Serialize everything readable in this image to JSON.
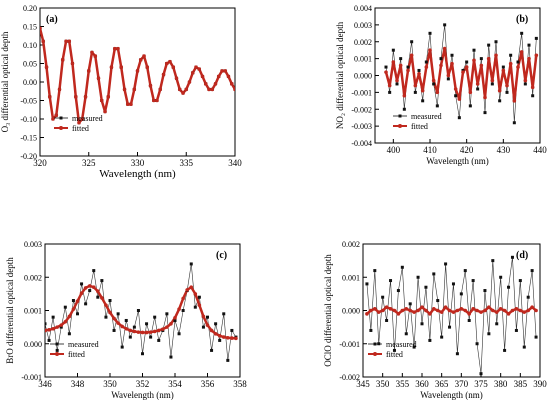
{
  "figure": {
    "background": "#ffffff"
  },
  "chart_data": [
    {
      "panel": "(a)",
      "type": "scatter",
      "ylabel": "O₃ differential optical depth",
      "xlabel": "Wavelength (nm)",
      "xlim": [
        320,
        340
      ],
      "ylim": [
        -0.2,
        0.2
      ],
      "xticks": [
        "320",
        "325",
        "330",
        "335",
        "340"
      ],
      "yticks": [
        "0.20",
        "0.15",
        "0.10",
        "0.05",
        "0.00",
        "-0.05",
        "-0.10",
        "-0.15",
        "-0.20"
      ],
      "legend": [
        {
          "label": "measured"
        },
        {
          "label": "fitted"
        }
      ],
      "legend_position": "bottom-left",
      "colors": {
        "measured": "#111111",
        "fitted": "#c0281e"
      },
      "series": [
        {
          "name": "measured",
          "x": [
            320.0,
            320.33,
            320.67,
            321.0,
            321.33,
            321.67,
            322.0,
            322.33,
            322.67,
            323.0,
            323.33,
            323.67,
            324.0,
            324.33,
            324.67,
            325.0,
            325.33,
            325.67,
            326.0,
            326.33,
            326.67,
            327.0,
            327.33,
            327.67,
            328.0,
            328.33,
            328.67,
            329.0,
            329.33,
            329.67,
            330.0,
            330.33,
            330.67,
            331.0,
            331.33,
            331.67,
            332.0,
            332.33,
            332.67,
            333.0,
            333.33,
            333.67,
            334.0,
            334.33,
            334.67,
            335.0,
            335.33,
            335.67,
            336.0,
            336.33,
            336.67,
            337.0,
            337.33,
            337.67,
            338.0,
            338.33,
            338.67,
            339.0,
            339.33,
            339.67,
            340.0
          ],
          "y": [
            0.145,
            0.11,
            0.04,
            -0.04,
            -0.1,
            -0.09,
            -0.02,
            0.06,
            0.11,
            0.11,
            0.05,
            -0.04,
            -0.11,
            -0.1,
            -0.04,
            0.03,
            0.08,
            0.07,
            0.01,
            -0.05,
            -0.08,
            -0.04,
            0.04,
            0.09,
            0.09,
            0.04,
            -0.02,
            -0.06,
            -0.06,
            -0.02,
            0.03,
            0.06,
            0.07,
            0.04,
            -0.01,
            -0.05,
            -0.05,
            -0.02,
            0.02,
            0.05,
            0.055,
            0.04,
            0.01,
            -0.02,
            -0.03,
            -0.02,
            0.0,
            0.025,
            0.04,
            0.035,
            0.015,
            -0.005,
            -0.02,
            -0.02,
            -0.005,
            0.015,
            0.03,
            0.03,
            0.015,
            -0.005,
            -0.02
          ]
        },
        {
          "name": "fitted",
          "x": [
            320.0,
            320.33,
            320.67,
            321.0,
            321.33,
            321.67,
            322.0,
            322.33,
            322.67,
            323.0,
            323.33,
            323.67,
            324.0,
            324.33,
            324.67,
            325.0,
            325.33,
            325.67,
            326.0,
            326.33,
            326.67,
            327.0,
            327.33,
            327.67,
            328.0,
            328.33,
            328.67,
            329.0,
            329.33,
            329.67,
            330.0,
            330.33,
            330.67,
            331.0,
            331.33,
            331.67,
            332.0,
            332.33,
            332.67,
            333.0,
            333.33,
            333.67,
            334.0,
            334.33,
            334.67,
            335.0,
            335.33,
            335.67,
            336.0,
            336.33,
            336.67,
            337.0,
            337.33,
            337.67,
            338.0,
            338.33,
            338.67,
            339.0,
            339.33,
            339.67,
            340.0
          ],
          "y": [
            0.145,
            0.11,
            0.04,
            -0.04,
            -0.1,
            -0.09,
            -0.02,
            0.06,
            0.11,
            0.11,
            0.05,
            -0.04,
            -0.11,
            -0.1,
            -0.04,
            0.03,
            0.08,
            0.07,
            0.01,
            -0.05,
            -0.08,
            -0.04,
            0.04,
            0.09,
            0.09,
            0.04,
            -0.02,
            -0.06,
            -0.06,
            -0.02,
            0.03,
            0.06,
            0.07,
            0.04,
            -0.01,
            -0.05,
            -0.05,
            -0.02,
            0.02,
            0.05,
            0.055,
            0.04,
            0.01,
            -0.02,
            -0.03,
            -0.02,
            0.0,
            0.025,
            0.04,
            0.035,
            0.015,
            -0.005,
            -0.02,
            -0.02,
            -0.005,
            0.015,
            0.03,
            0.03,
            0.015,
            -0.005,
            -0.02
          ]
        }
      ]
    },
    {
      "panel": "(b)",
      "type": "scatter",
      "ylabel": "NO₂ differential optical depth",
      "xlabel": "Wavelength (nm)",
      "xlim": [
        395,
        440
      ],
      "ylim": [
        -0.004,
        0.004
      ],
      "xticks": [
        "400",
        "410",
        "420",
        "430",
        "440"
      ],
      "yticks": [
        "0.004",
        "0.003",
        "0.002",
        "0.001",
        "0.000",
        "-0.001",
        "-0.002",
        "-0.003",
        "-0.004"
      ],
      "legend": [
        {
          "label": "measured"
        },
        {
          "label": "fitted"
        }
      ],
      "legend_position": "bottom-left",
      "colors": {
        "measured": "#111111",
        "fitted": "#c0281e"
      },
      "series": [
        {
          "name": "measured",
          "x": [
            398,
            399,
            400,
            401,
            402,
            403,
            404,
            405,
            406,
            407,
            408,
            409,
            410,
            411,
            412,
            413,
            414,
            415,
            416,
            417,
            418,
            419,
            420,
            421,
            422,
            423,
            424,
            425,
            426,
            427,
            428,
            429,
            430,
            431,
            432,
            433,
            434,
            435,
            436,
            437,
            438,
            439
          ],
          "y": [
            0.0005,
            -0.001,
            0.0015,
            -0.0005,
            0.001,
            -0.002,
            0.0005,
            0.002,
            -0.001,
            0.0003,
            -0.0015,
            0.0008,
            0.0025,
            -0.0005,
            -0.0018,
            0.001,
            0.003,
            -0.0002,
            0.0012,
            -0.0012,
            -0.0025,
            0.0003,
            0.0008,
            -0.0018,
            0.0015,
            -0.0008,
            0.001,
            -0.0022,
            0.0018,
            -0.0005,
            0.002,
            -0.0015,
            0.0005,
            -0.001,
            0.0012,
            -0.0028,
            0.0008,
            0.0025,
            -0.0005,
            0.0018,
            -0.0012,
            0.0022
          ]
        },
        {
          "name": "fitted",
          "x": [
            398,
            399,
            400,
            401,
            402,
            403,
            404,
            405,
            406,
            407,
            408,
            409,
            410,
            411,
            412,
            413,
            414,
            415,
            416,
            417,
            418,
            419,
            420,
            421,
            422,
            423,
            424,
            425,
            426,
            427,
            428,
            429,
            430,
            431,
            432,
            433,
            434,
            435,
            436,
            437,
            438,
            439
          ],
          "y": [
            0.0002,
            -0.0006,
            0.0008,
            -0.0003,
            0.0006,
            -0.0012,
            0.0003,
            0.0012,
            -0.0006,
            0.0001,
            -0.0009,
            0.0005,
            0.0015,
            -0.0003,
            -0.001,
            0.0006,
            0.0016,
            0.0,
            0.0007,
            -0.0008,
            -0.0014,
            0.0002,
            0.0005,
            -0.001,
            0.0009,
            -0.0005,
            0.0006,
            -0.0013,
            0.001,
            -0.0003,
            0.0012,
            -0.0009,
            0.0003,
            -0.0006,
            0.0007,
            -0.0015,
            0.0005,
            0.0014,
            -0.0003,
            0.001,
            -0.0007,
            0.0012
          ]
        }
      ]
    },
    {
      "panel": "(c)",
      "type": "scatter",
      "ylabel": "BrO differential optical depth",
      "xlabel": "Wavelength (nm)",
      "xlim": [
        346,
        358
      ],
      "ylim": [
        -0.001,
        0.003
      ],
      "xticks": [
        "346",
        "348",
        "350",
        "352",
        "354",
        "356",
        "358"
      ],
      "yticks": [
        "0.003",
        "0.002",
        "0.001",
        "0.000",
        "-0.001"
      ],
      "legend": [
        {
          "label": "measured"
        },
        {
          "label": "fitted"
        }
      ],
      "legend_position": "bottom-right",
      "colors": {
        "measured": "#111111",
        "fitted": "#c0281e"
      },
      "series": [
        {
          "name": "measured",
          "x": [
            346.0,
            346.25,
            346.5,
            346.75,
            347.0,
            347.25,
            347.5,
            347.75,
            348.0,
            348.25,
            348.5,
            348.75,
            349.0,
            349.25,
            349.5,
            349.75,
            350.0,
            350.25,
            350.5,
            350.75,
            351.0,
            351.25,
            351.5,
            351.75,
            352.0,
            352.25,
            352.5,
            352.75,
            353.0,
            353.25,
            353.5,
            353.75,
            354.0,
            354.25,
            354.5,
            354.75,
            355.0,
            355.25,
            355.5,
            355.75,
            356.0,
            356.25,
            356.5,
            356.75,
            357.0,
            357.25,
            357.5,
            357.75
          ],
          "y": [
            0.0006,
            0.0001,
            0.0008,
            -0.0002,
            0.0005,
            0.0011,
            0.0003,
            0.0013,
            0.0009,
            0.0018,
            0.0012,
            0.0016,
            0.0022,
            0.0014,
            0.0019,
            0.0008,
            0.0013,
            0.0004,
            0.0009,
            -0.0001,
            0.0007,
            0.0002,
            0.0005,
            0.001,
            -0.0003,
            0.0006,
            0.0002,
            0.0008,
            0.0001,
            0.0004,
            0.0009,
            -0.0004,
            0.0007,
            0.0003,
            0.001,
            0.0016,
            0.0024,
            0.0011,
            0.0014,
            0.0005,
            0.0008,
            -0.0002,
            0.0006,
            0.0001,
            0.0009,
            -0.0005,
            0.0004,
            0.0002
          ]
        },
        {
          "name": "fitted",
          "x": [
            346.0,
            346.25,
            346.5,
            346.75,
            347.0,
            347.25,
            347.5,
            347.75,
            348.0,
            348.25,
            348.5,
            348.75,
            349.0,
            349.25,
            349.5,
            349.75,
            350.0,
            350.25,
            350.5,
            350.75,
            351.0,
            351.25,
            351.5,
            351.75,
            352.0,
            352.25,
            352.5,
            352.75,
            353.0,
            353.25,
            353.5,
            353.75,
            354.0,
            354.25,
            354.5,
            354.75,
            355.0,
            355.25,
            355.5,
            355.75,
            356.0,
            356.25,
            356.5,
            356.75,
            357.0,
            357.25,
            357.5,
            357.75
          ],
          "y": [
            0.0004,
            0.00042,
            0.00045,
            0.0005,
            0.00056,
            0.00066,
            0.00082,
            0.00104,
            0.00128,
            0.00152,
            0.00168,
            0.00174,
            0.0017,
            0.00158,
            0.00138,
            0.00116,
            0.00094,
            0.00076,
            0.00062,
            0.00052,
            0.00045,
            0.0004,
            0.00037,
            0.00035,
            0.00034,
            0.00034,
            0.00035,
            0.00037,
            0.0004,
            0.00044,
            0.0005,
            0.0006,
            0.00078,
            0.00104,
            0.00136,
            0.00162,
            0.0017,
            0.0015,
            0.00116,
            0.00082,
            0.00056,
            0.0004,
            0.0003,
            0.00024,
            0.0002,
            0.00018,
            0.00017,
            0.00016
          ]
        }
      ]
    },
    {
      "panel": "(d)",
      "type": "scatter",
      "ylabel": "OClO differential optical depth",
      "xlabel": "Wavelength (nm)",
      "xlim": [
        345,
        390
      ],
      "ylim": [
        -0.002,
        0.002
      ],
      "xticks": [
        "345",
        "350",
        "355",
        "360",
        "365",
        "370",
        "375",
        "380",
        "385",
        "390"
      ],
      "yticks": [
        "0.002",
        "0.001",
        "0.000",
        "-0.001",
        "-0.002"
      ],
      "legend": [
        {
          "label": "measured"
        },
        {
          "label": "fitted"
        }
      ],
      "legend_position": "bottom-left",
      "colors": {
        "measured": "#111111",
        "fitted": "#c0281e"
      },
      "series": [
        {
          "name": "measured",
          "x": [
            346,
            347,
            348,
            349,
            350,
            351,
            352,
            353,
            354,
            355,
            356,
            357,
            358,
            359,
            360,
            361,
            362,
            363,
            364,
            365,
            366,
            367,
            368,
            369,
            370,
            371,
            372,
            373,
            374,
            375,
            376,
            377,
            378,
            379,
            380,
            381,
            382,
            383,
            384,
            385,
            386,
            387,
            388,
            389
          ],
          "y": [
            0.0008,
            -0.0006,
            0.0012,
            -0.001,
            0.0004,
            -0.0003,
            0.0009,
            -0.0012,
            0.0006,
            0.0013,
            -0.0007,
            0.0002,
            -0.0011,
            0.001,
            -0.0004,
            0.0007,
            -0.0009,
            0.0011,
            0.0003,
            -0.0008,
            0.0014,
            -0.0005,
            0.0008,
            -0.0013,
            0.0005,
            0.0012,
            -0.0003,
            0.0009,
            -0.001,
            -0.0019,
            0.0006,
            -0.0007,
            0.0015,
            -0.0004,
            0.001,
            -0.0012,
            0.0007,
            0.0016,
            -0.0006,
            0.0009,
            -0.0011,
            0.0004,
            0.0012,
            -0.0008
          ]
        },
        {
          "name": "fitted",
          "x": [
            346,
            347,
            348,
            349,
            350,
            351,
            352,
            353,
            354,
            355,
            356,
            357,
            358,
            359,
            360,
            361,
            362,
            363,
            364,
            365,
            366,
            367,
            368,
            369,
            370,
            371,
            372,
            373,
            374,
            375,
            376,
            377,
            378,
            379,
            380,
            381,
            382,
            383,
            384,
            385,
            386,
            387,
            388,
            389
          ],
          "y": [
            -0.0001,
            0.0,
            5e-05,
            -5e-05,
            0.0,
            0.0001,
            5e-05,
            0.0,
            -0.0001,
            0.0,
            5e-05,
            0.0,
            -5e-05,
            0.0,
            0.0001,
            0.0,
            -0.0001,
            5e-05,
            0.0,
            -5e-05,
            0.0001,
            0.0,
            -5e-05,
            0.0,
            5e-05,
            0.0,
            -0.0001,
            5e-05,
            0.0,
            -5e-05,
            0.0,
            0.0001,
            0.0,
            -5e-05,
            5e-05,
            0.0,
            -0.0001,
            0.0,
            5e-05,
            0.0,
            -5e-05,
            0.0,
            0.0001,
            0.0
          ]
        }
      ]
    }
  ]
}
